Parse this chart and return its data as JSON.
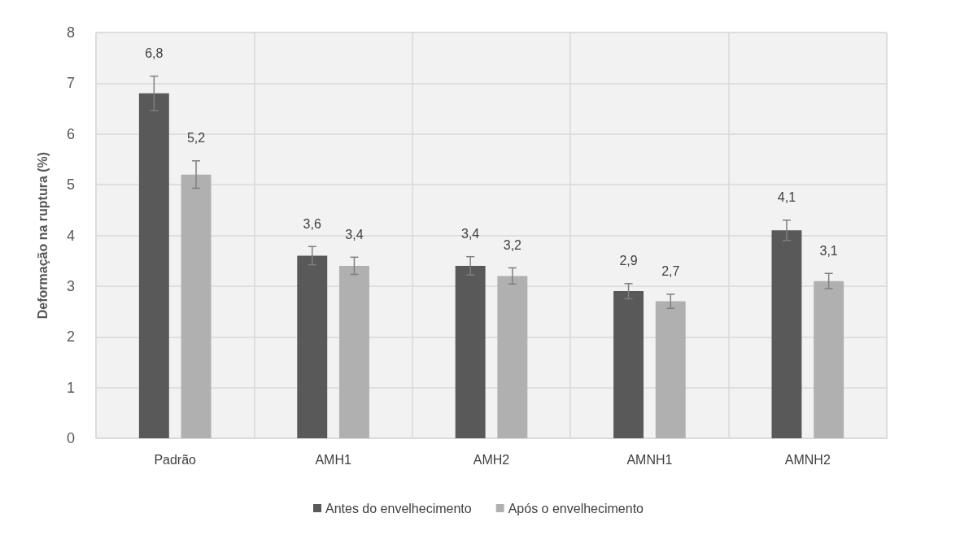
{
  "chart_data": {
    "type": "bar",
    "ylabel": "Deformação na ruptura (%)",
    "categories": [
      "Padrão",
      "AMH1",
      "AMH2",
      "AMNH1",
      "AMNH2"
    ],
    "series": [
      {
        "name": "Antes do envelhecimento",
        "color": "#595959",
        "values": [
          6.8,
          3.6,
          3.4,
          2.9,
          4.1
        ],
        "errors": [
          0.34,
          0.18,
          0.18,
          0.15,
          0.2
        ],
        "value_labels": [
          "6,8",
          "3,6",
          "3,4",
          "2,9",
          "4,1"
        ]
      },
      {
        "name": "Após o envelhecimento",
        "color": "#b0b0b0",
        "values": [
          5.2,
          3.4,
          3.2,
          2.7,
          3.1
        ],
        "errors": [
          0.27,
          0.17,
          0.16,
          0.14,
          0.15
        ],
        "value_labels": [
          "5,2",
          "3,4",
          "3,2",
          "2,7",
          "3,1"
        ]
      }
    ],
    "ylim": [
      0,
      8
    ],
    "yticks": [
      0,
      1,
      2,
      3,
      4,
      5,
      6,
      7,
      8
    ],
    "grid": true,
    "legend": "bottom"
  }
}
